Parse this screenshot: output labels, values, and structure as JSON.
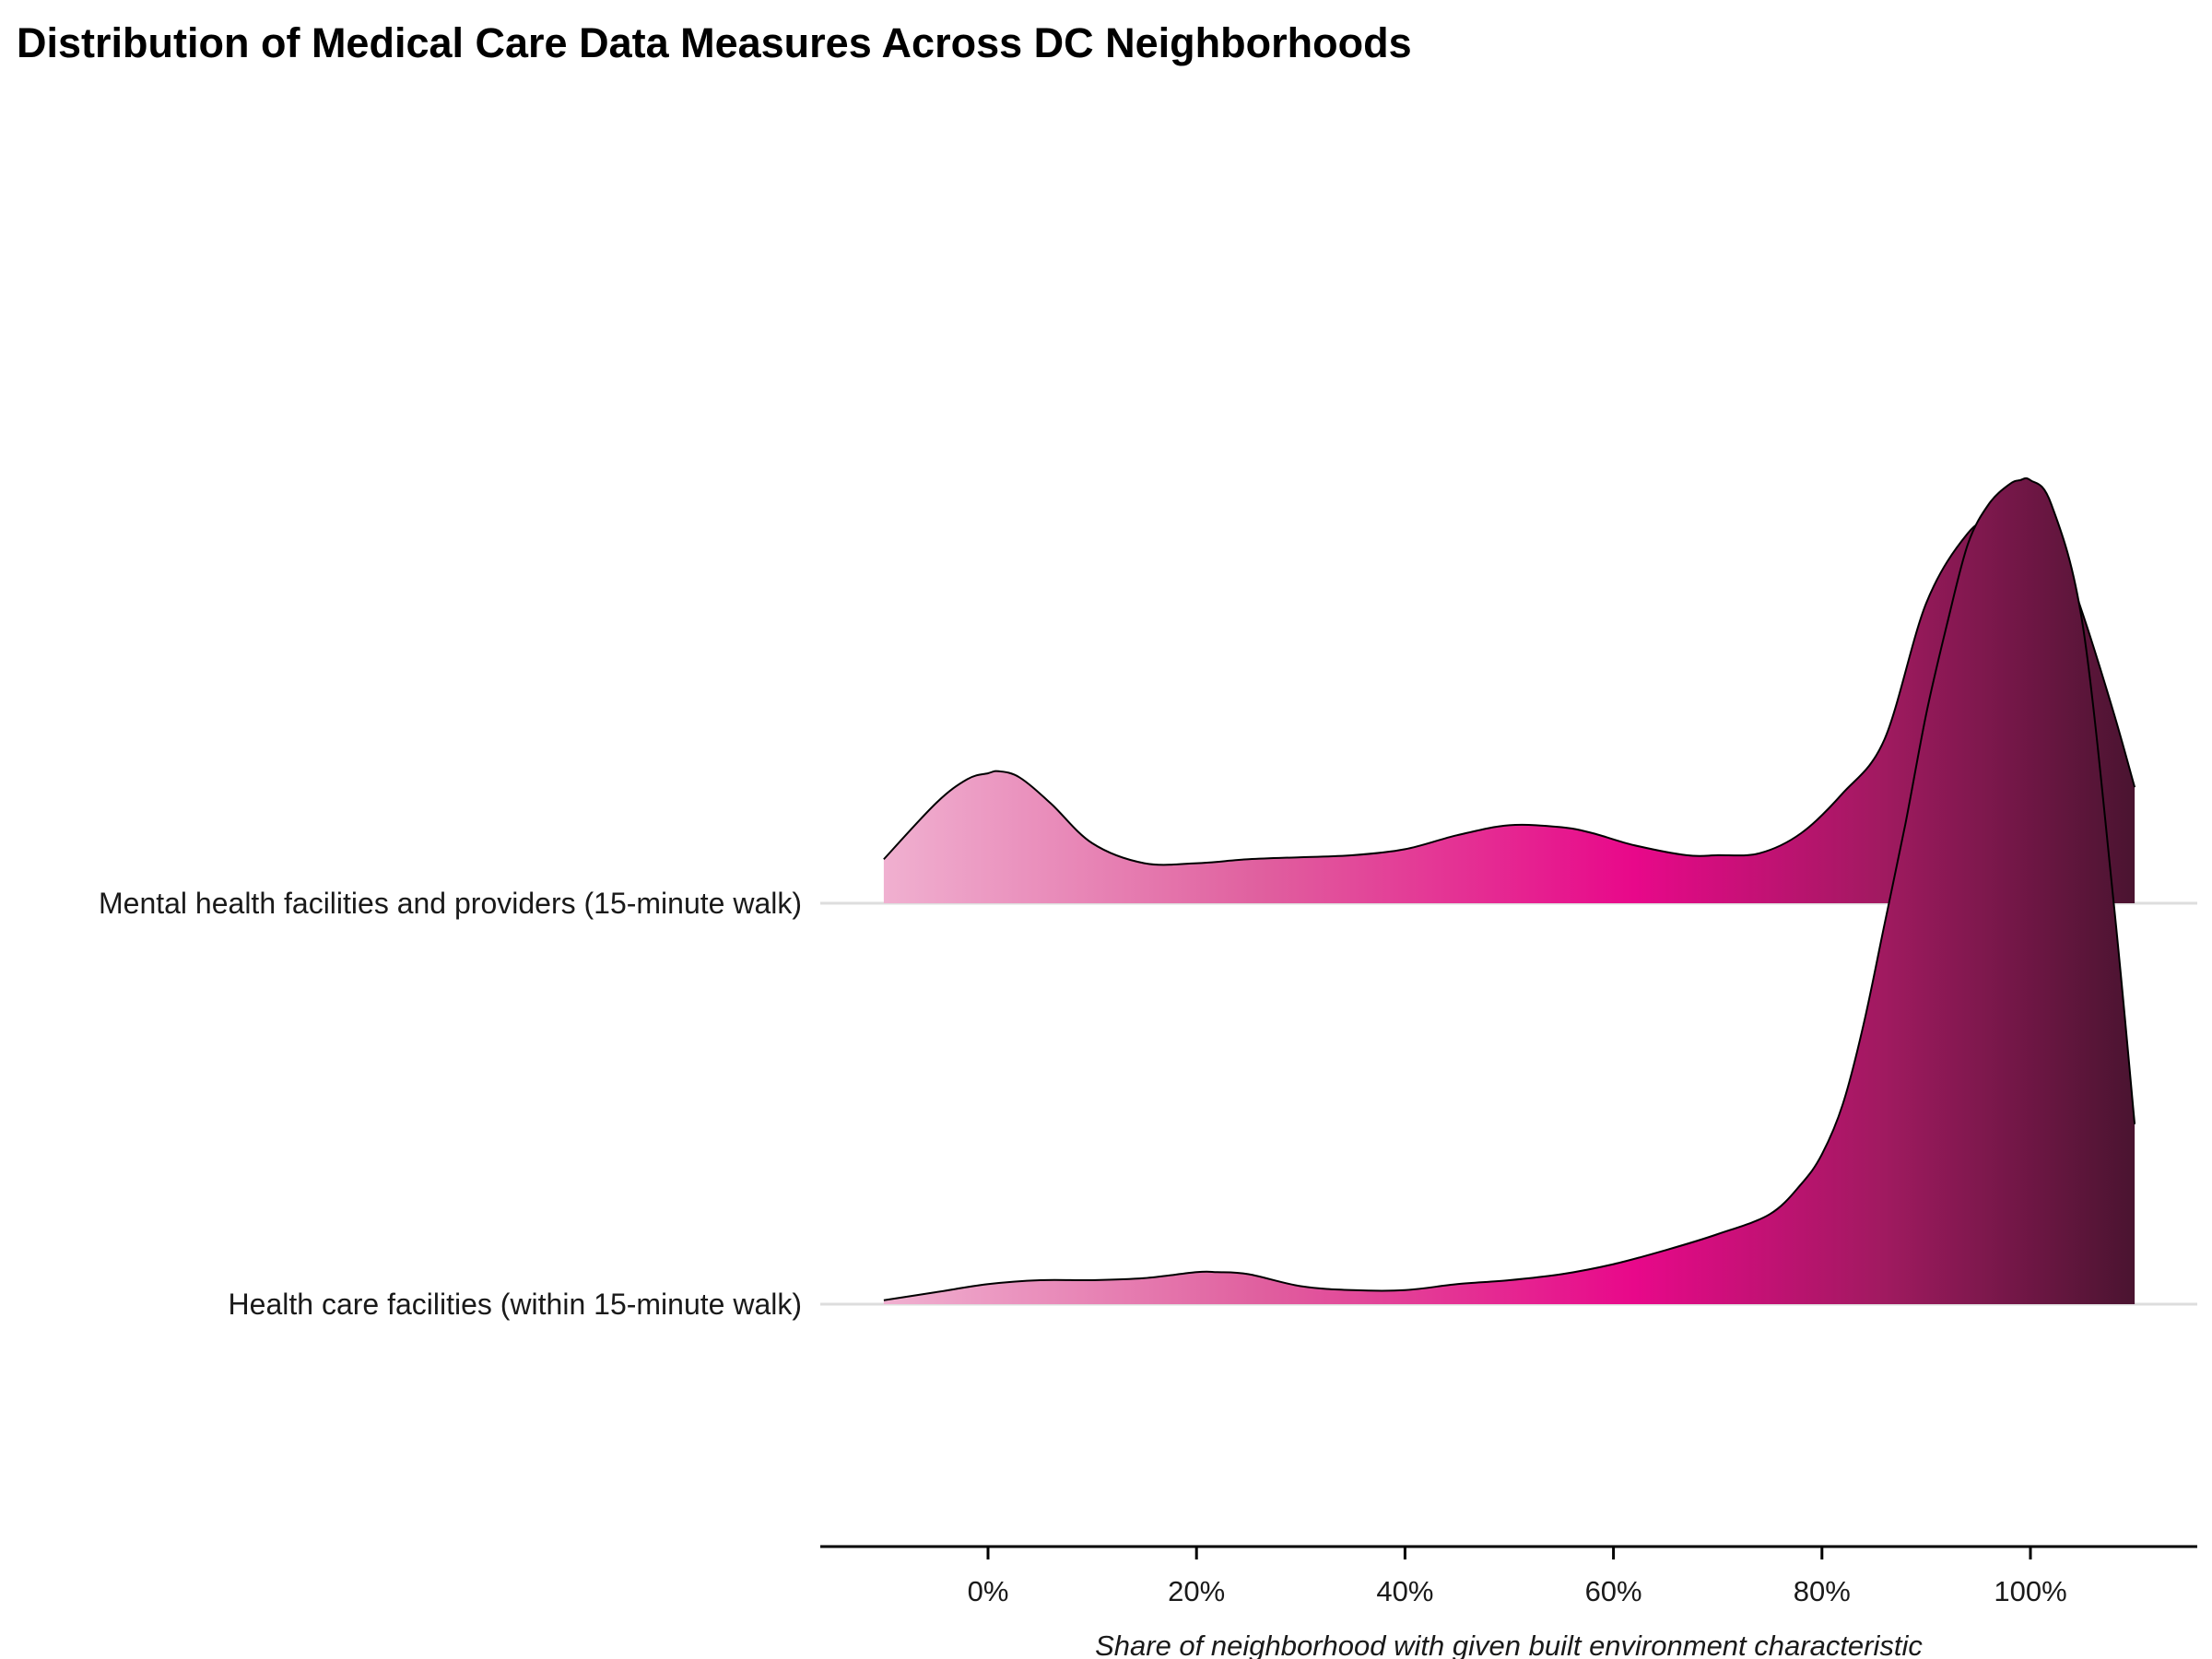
{
  "chart_data": {
    "type": "ridgeline",
    "title": "Distribution of Medical Care Data Measures Across DC Neighborhoods",
    "xlabel": "Share of neighborhood with given built environment characteristic",
    "ylabel": "",
    "xlim": [
      -0.16,
      1.16
    ],
    "x_ticks": [
      0,
      0.2,
      0.4,
      0.6,
      0.8,
      1.0
    ],
    "x_tick_labels": [
      "0%",
      "20%",
      "40%",
      "60%",
      "80%",
      "100%"
    ],
    "categories": [
      "Mental health facilities and providers (15-minute walk)",
      "Health care facilities (within 15-minute walk)"
    ],
    "fill_gradient": [
      "#f0b0d0",
      "#e0609f",
      "#e8088a",
      "#a01a60",
      "#4a1430"
    ],
    "series": [
      {
        "name": "Mental health facilities and providers (15-minute walk)",
        "x": [
          -0.1,
          -0.05,
          -0.02,
          0.0,
          0.01,
          0.03,
          0.06,
          0.1,
          0.15,
          0.2,
          0.25,
          0.3,
          0.35,
          0.4,
          0.45,
          0.5,
          0.55,
          0.58,
          0.62,
          0.67,
          0.7,
          0.74,
          0.78,
          0.82,
          0.86,
          0.9,
          0.94,
          0.97,
          0.99,
          1.0,
          1.02,
          1.05,
          1.08,
          1.1
        ],
        "y": [
          0.22,
          0.5,
          0.62,
          0.65,
          0.66,
          0.63,
          0.5,
          0.3,
          0.2,
          0.2,
          0.22,
          0.23,
          0.24,
          0.27,
          0.34,
          0.39,
          0.38,
          0.35,
          0.29,
          0.24,
          0.24,
          0.25,
          0.35,
          0.55,
          0.82,
          1.5,
          1.85,
          1.95,
          2.0,
          2.0,
          1.88,
          1.45,
          0.95,
          0.58
        ]
      },
      {
        "name": "Health care facilities (within 15-minute walk)",
        "x": [
          -0.1,
          -0.05,
          0.0,
          0.05,
          0.1,
          0.15,
          0.2,
          0.22,
          0.25,
          0.3,
          0.35,
          0.4,
          0.45,
          0.5,
          0.55,
          0.6,
          0.65,
          0.7,
          0.75,
          0.78,
          0.8,
          0.82,
          0.84,
          0.86,
          0.88,
          0.9,
          0.92,
          0.94,
          0.96,
          0.98,
          0.99,
          1.0,
          1.02,
          1.05,
          1.08,
          1.1
        ],
        "y": [
          0.02,
          0.06,
          0.1,
          0.12,
          0.12,
          0.13,
          0.16,
          0.16,
          0.15,
          0.09,
          0.07,
          0.07,
          0.1,
          0.12,
          0.15,
          0.2,
          0.27,
          0.35,
          0.45,
          0.6,
          0.75,
          1.0,
          1.4,
          1.9,
          2.4,
          2.95,
          3.4,
          3.8,
          4.0,
          4.1,
          4.12,
          4.12,
          4.0,
          3.4,
          2.0,
          0.9
        ]
      }
    ]
  }
}
